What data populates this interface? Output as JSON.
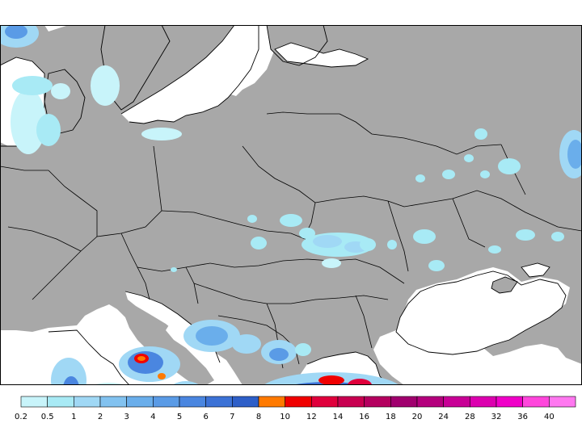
{
  "legend": {
    "labels": [
      "0.2",
      "0.5",
      "1",
      "2",
      "3",
      "4",
      "5",
      "6",
      "7",
      "8",
      "10",
      "12",
      "14",
      "16",
      "18",
      "20",
      "24",
      "28",
      "32",
      "36",
      "40"
    ],
    "colors": [
      "#c8f4fa",
      "#a8eaf5",
      "#a0d8f5",
      "#82c2f0",
      "#6aaeeb",
      "#5a9be6",
      "#4a86e0",
      "#3c72d6",
      "#2e5fc8",
      "#ff7a00",
      "#f00000",
      "#e0003c",
      "#c80050",
      "#b4005f",
      "#a0006e",
      "#b4007d",
      "#c80096",
      "#dc00af",
      "#f000c8",
      "#ff46dc",
      "#ff78f0"
    ]
  },
  "map": {
    "land_color": "#a8a8a8",
    "sea_color": "#ffffff",
    "border_color": "#000000"
  }
}
